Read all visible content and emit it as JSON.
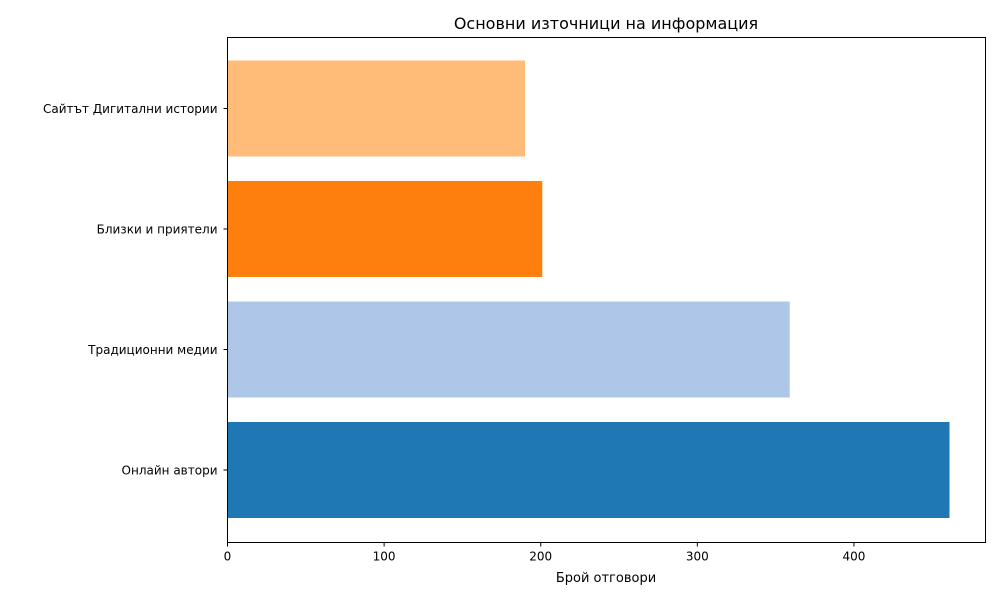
{
  "chart_data": {
    "type": "bar",
    "orientation": "horizontal",
    "title": "Основни източници на информация",
    "xlabel": "Брой отговори",
    "ylabel": "",
    "categories": [
      "Онлайн автори",
      "Традиционни медии",
      "Близки и приятели",
      "Сайтът Дигитални истории"
    ],
    "values": [
      461,
      359,
      201,
      190
    ],
    "colors": [
      "#1f77b4",
      "#aec7e8",
      "#ff7f0e",
      "#ffbb78"
    ],
    "xlim": [
      0,
      484
    ],
    "xticks": [
      0,
      100,
      200,
      300,
      400
    ],
    "grid": false,
    "legend": "none"
  }
}
